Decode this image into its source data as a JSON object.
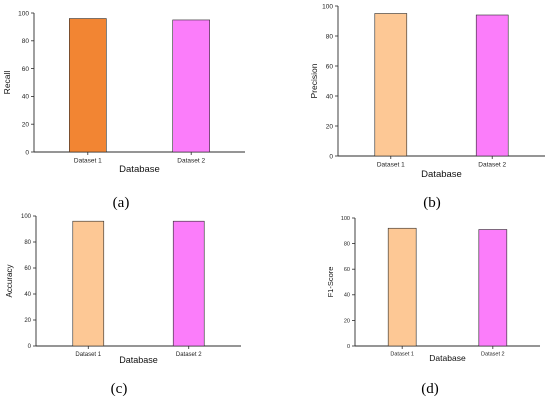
{
  "colors": {
    "dataset1_panel_a": "#F28533",
    "dataset1_other": "#FDC895",
    "dataset2": "#FB7DFA",
    "bar_edge": "#2b2b2b",
    "axis": "#2b2b2b"
  },
  "chart_data": [
    {
      "panel": "(a)",
      "type": "bar",
      "categories": [
        "Dataset 1",
        "Dataset 2"
      ],
      "values": [
        96,
        95
      ],
      "xlabel": "Database",
      "ylabel": "Recall",
      "ylim": [
        0,
        100
      ],
      "yticks": [
        0,
        20,
        40,
        60,
        80,
        100
      ],
      "grid": false
    },
    {
      "panel": "(b)",
      "type": "bar",
      "categories": [
        "Dataset 1",
        "Dataset 2"
      ],
      "values": [
        95,
        94
      ],
      "xlabel": "Database",
      "ylabel": "Precision",
      "ylim": [
        0,
        100
      ],
      "yticks": [
        0,
        20,
        40,
        60,
        80,
        100
      ],
      "grid": false
    },
    {
      "panel": "(c)",
      "type": "bar",
      "categories": [
        "Dataset 1",
        "Dataset 2"
      ],
      "values": [
        96,
        96
      ],
      "xlabel": "Database",
      "ylabel": "Accuracy",
      "ylim": [
        0,
        100
      ],
      "yticks": [
        0,
        20,
        40,
        60,
        80,
        100
      ],
      "grid": false
    },
    {
      "panel": "(d)",
      "type": "bar",
      "categories": [
        "Dataset 1",
        "Dataset 2"
      ],
      "values": [
        92,
        91
      ],
      "xlabel": "Database",
      "ylabel": "F1-Score",
      "ylim": [
        0,
        100
      ],
      "yticks": [
        0,
        20,
        40,
        60,
        80,
        100
      ],
      "grid": false
    }
  ]
}
